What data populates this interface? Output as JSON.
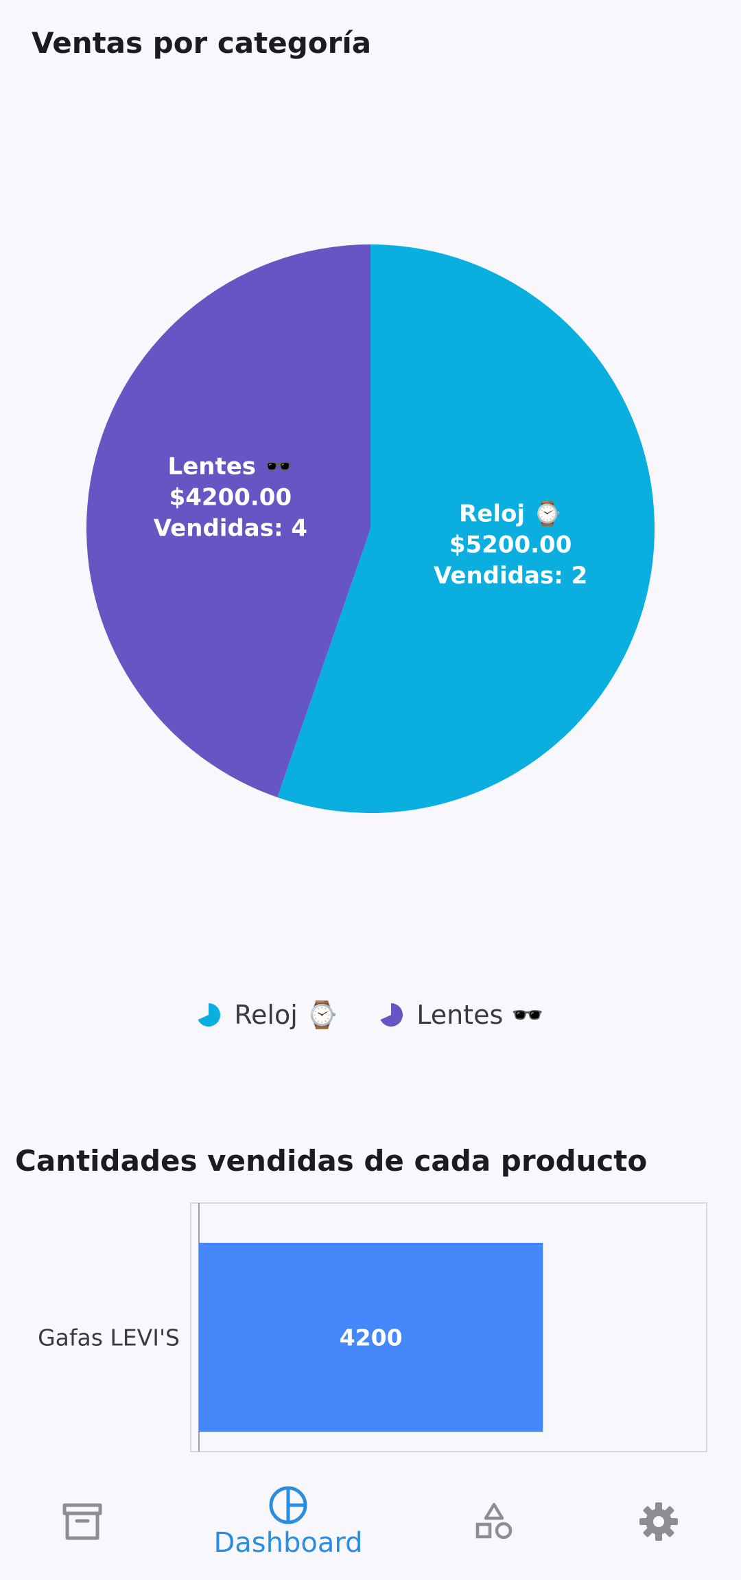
{
  "pie_section": {
    "title": "Ventas por categoría"
  },
  "bar_section": {
    "title": "Cantidades vendidas de cada producto"
  },
  "chart_data": [
    {
      "type": "pie",
      "title": "Ventas por categoría",
      "slices": [
        {
          "name": "Reloj ⌚",
          "value": 5200.0,
          "amount_label": "$5200.00",
          "sold_label": "Vendidas: 2",
          "color": "#0aafdf"
        },
        {
          "name": "Lentes 🕶️",
          "value": 4200.0,
          "amount_label": "$4200.00",
          "sold_label": "Vendidas: 4",
          "color": "#6556c4"
        }
      ],
      "legend_placement": "bottom"
    },
    {
      "type": "bar",
      "orientation": "horizontal",
      "title": "Cantidades vendidas de cada producto",
      "categories": [
        "Gafas LEVI'S"
      ],
      "values": [
        4200
      ],
      "value_labels": [
        "4200"
      ],
      "color": "#4488fb",
      "xlim": [
        0,
        6200
      ]
    }
  ],
  "nav": {
    "items": [
      {
        "icon": "archive-icon",
        "label": ""
      },
      {
        "icon": "pie-chart-icon",
        "label": "Dashboard",
        "active": true
      },
      {
        "icon": "shapes-icon",
        "label": ""
      },
      {
        "icon": "gear-icon",
        "label": ""
      }
    ],
    "active_color": "#2a8de0",
    "inactive_color": "#8e8d93"
  }
}
